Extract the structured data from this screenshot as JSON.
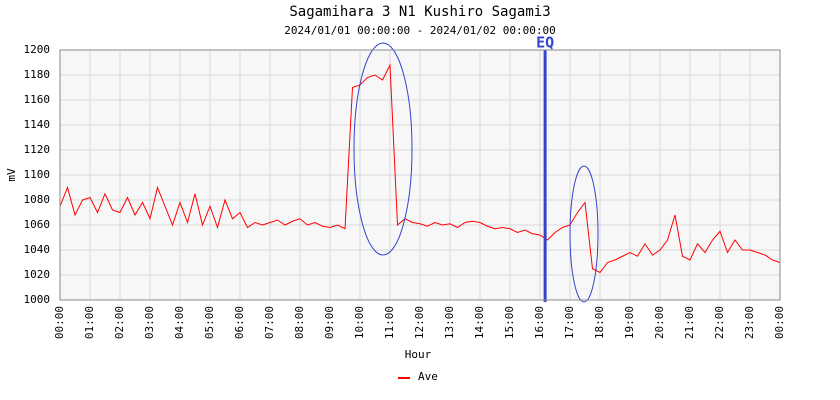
{
  "chart_data": {
    "type": "line",
    "title": "Sagamihara 3 N1 Kushiro Sagami3",
    "subtitle": "2024/01/01 00:00:00 - 2024/01/02 00:00:00",
    "x_label": "Hour",
    "y_label": "mV",
    "xlim": [
      0,
      24
    ],
    "ylim": [
      1000,
      1200
    ],
    "xticks": [
      {
        "value": 0,
        "label": "00:00"
      },
      {
        "value": 1,
        "label": "01:00"
      },
      {
        "value": 2,
        "label": "02:00"
      },
      {
        "value": 3,
        "label": "03:00"
      },
      {
        "value": 4,
        "label": "04:00"
      },
      {
        "value": 5,
        "label": "05:00"
      },
      {
        "value": 6,
        "label": "06:00"
      },
      {
        "value": 7,
        "label": "07:00"
      },
      {
        "value": 8,
        "label": "08:00"
      },
      {
        "value": 9,
        "label": "09:00"
      },
      {
        "value": 10,
        "label": "10:00"
      },
      {
        "value": 11,
        "label": "11:00"
      },
      {
        "value": 12,
        "label": "12:00"
      },
      {
        "value": 13,
        "label": "13:00"
      },
      {
        "value": 14,
        "label": "14:00"
      },
      {
        "value": 15,
        "label": "15:00"
      },
      {
        "value": 16,
        "label": "16:00"
      },
      {
        "value": 17,
        "label": "17:00"
      },
      {
        "value": 18,
        "label": "18:00"
      },
      {
        "value": 19,
        "label": "19:00"
      },
      {
        "value": 20,
        "label": "20:00"
      },
      {
        "value": 21,
        "label": "21:00"
      },
      {
        "value": 22,
        "label": "22:00"
      },
      {
        "value": 23,
        "label": "23:00"
      },
      {
        "value": 24,
        "label": "00:00"
      }
    ],
    "yticks": [
      1000,
      1020,
      1040,
      1060,
      1080,
      1100,
      1120,
      1140,
      1160,
      1180,
      1200
    ],
    "grid": true,
    "x": [
      0,
      0.25,
      0.5,
      0.75,
      1,
      1.25,
      1.5,
      1.75,
      2,
      2.25,
      2.5,
      2.75,
      3,
      3.25,
      3.5,
      3.75,
      4,
      4.25,
      4.5,
      4.75,
      5,
      5.25,
      5.5,
      5.75,
      6,
      6.25,
      6.5,
      6.75,
      7,
      7.25,
      7.5,
      7.75,
      8,
      8.25,
      8.5,
      8.75,
      9,
      9.25,
      9.5,
      9.75,
      10,
      10.25,
      10.5,
      10.75,
      11,
      11.25,
      11.5,
      11.75,
      12,
      12.25,
      12.5,
      12.75,
      13,
      13.25,
      13.5,
      13.75,
      14,
      14.25,
      14.5,
      14.75,
      15,
      15.25,
      15.5,
      15.75,
      16,
      16.25,
      16.5,
      16.75,
      17,
      17.25,
      17.5,
      17.75,
      18,
      18.25,
      18.5,
      18.75,
      19,
      19.25,
      19.5,
      19.75,
      20,
      20.25,
      20.5,
      20.75,
      21,
      21.25,
      21.5,
      21.75,
      22,
      22.25,
      22.5,
      22.75,
      23,
      23.25,
      23.5,
      23.75,
      24
    ],
    "series": [
      {
        "name": "Ave",
        "color": "#ff0000",
        "values": [
          1075,
          1090,
          1068,
          1080,
          1082,
          1070,
          1085,
          1072,
          1070,
          1082,
          1068,
          1078,
          1065,
          1090,
          1075,
          1060,
          1078,
          1062,
          1085,
          1060,
          1075,
          1058,
          1080,
          1065,
          1070,
          1058,
          1062,
          1060,
          1062,
          1064,
          1060,
          1063,
          1065,
          1060,
          1062,
          1059,
          1058,
          1060,
          1057,
          1170,
          1172,
          1178,
          1180,
          1176,
          1188,
          1060,
          1065,
          1062,
          1061,
          1059,
          1062,
          1060,
          1061,
          1058,
          1062,
          1063,
          1062,
          1059,
          1057,
          1058,
          1057,
          1054,
          1056,
          1053,
          1052,
          1048,
          1054,
          1058,
          1060,
          1070,
          1078,
          1025,
          1022,
          1030,
          1032,
          1035,
          1038,
          1035,
          1045,
          1036,
          1040,
          1048,
          1068,
          1035,
          1032,
          1045,
          1038,
          1048,
          1055,
          1038,
          1048,
          1040,
          1040,
          1038,
          1036,
          1032,
          1030
        ]
      }
    ],
    "event": {
      "x": 16.17,
      "label": "EQ",
      "color": "#3344cc"
    }
  }
}
